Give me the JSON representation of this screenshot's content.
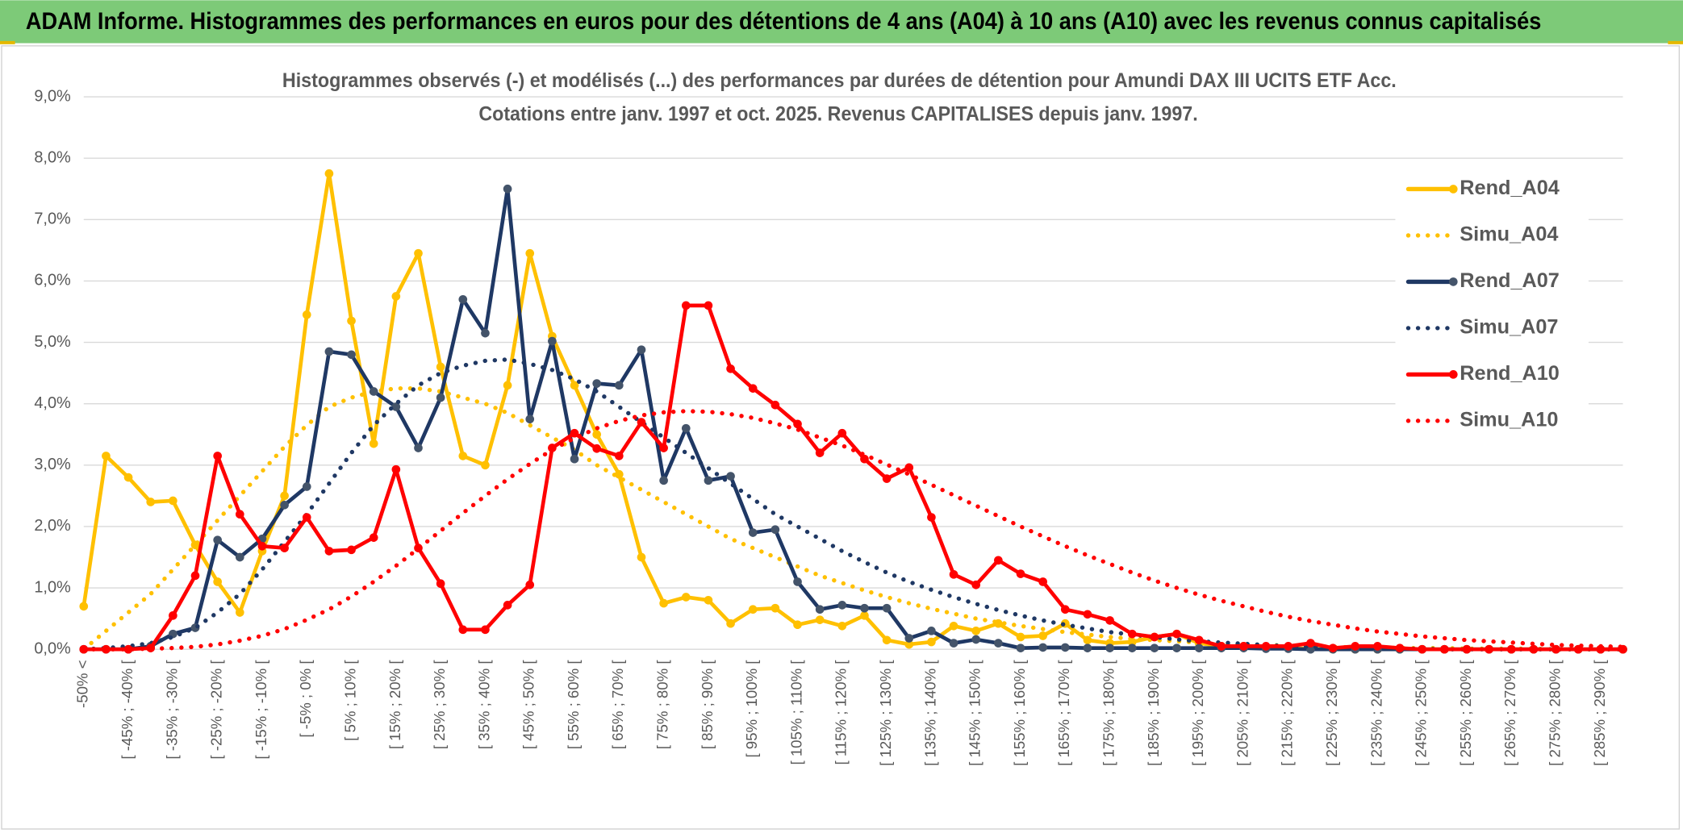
{
  "header": {
    "title": "ADAM Informe. Histogrammes des performances en euros pour des détentions de 4 ans (A04) à 10 ans (A10) avec les revenus connus capitalisés"
  },
  "chart_data": {
    "type": "line",
    "title": "Histogrammes observés (-) et modélisés (...) des performances par durées de détention pour Amundi DAX III UCITS ETF Acc.",
    "subtitle": "Cotations entre janv. 1997 et oct. 2025. Revenus CAPITALISES depuis janv. 1997.",
    "categories": [
      "-50% <",
      null,
      "[ -45% ; -40% [",
      null,
      "[ -35% ; -30% [",
      null,
      "[ -25% ; -20% [",
      null,
      "[ -15% ; -10% [",
      null,
      "[ -5% ; 0% [",
      null,
      "[ 5% ; 10% [",
      null,
      "[ 15% ; 20% [",
      null,
      "[ 25% ; 30% [",
      null,
      "[ 35% ; 40% [",
      null,
      "[ 45% ; 50% [",
      null,
      "[ 55% ; 60% [",
      null,
      "[ 65% ; 70% [",
      null,
      "[ 75% ; 80% [",
      null,
      "[ 85% ; 90% [",
      null,
      "[ 95% ; 100% [",
      null,
      "[ 105% ; 110% [",
      null,
      "[ 115% ; 120% [",
      null,
      "[ 125% ; 130% [",
      null,
      "[ 135% ; 140% [",
      null,
      "[ 145% ; 150% [",
      null,
      "[ 155% ; 160% [",
      null,
      "[ 165% ; 170% [",
      null,
      "[ 175% ; 180% [",
      null,
      "[ 185% ; 190% [",
      null,
      "[ 195% ; 200% [",
      null,
      "[ 205% ; 210% [",
      null,
      "[ 215% ; 220% [",
      null,
      "[ 225% ; 230% [",
      null,
      "[ 235% ; 240% [",
      null,
      "[ 245% ; 250% [",
      null,
      "[ 255% ; 260% [",
      null,
      "[ 265% ; 270% [",
      null,
      "[ 275% ; 280% [",
      null,
      "[ 285% ; 290% [",
      null
    ],
    "ylim": [
      0,
      9
    ],
    "yticks": [
      {
        "value": 0,
        "label": "0,0%"
      },
      {
        "value": 1,
        "label": "1,0%"
      },
      {
        "value": 2,
        "label": "2,0%"
      },
      {
        "value": 3,
        "label": "3,0%"
      },
      {
        "value": 4,
        "label": "4,0%"
      },
      {
        "value": 5,
        "label": "5,0%"
      },
      {
        "value": 6,
        "label": "6,0%"
      },
      {
        "value": 7,
        "label": "7,0%"
      },
      {
        "value": 8,
        "label": "8,0%"
      },
      {
        "value": 9,
        "label": "9,0%"
      }
    ],
    "grid": true,
    "legend": "right",
    "series": [
      {
        "name": "Rend_A04",
        "color": "#FFC000",
        "line_style": "solid",
        "marker": true,
        "values": [
          0.7,
          3.15,
          2.8,
          2.4,
          2.42,
          1.7,
          1.1,
          0.6,
          1.6,
          2.5,
          5.45,
          7.75,
          5.35,
          3.35,
          5.75,
          6.45,
          4.6,
          3.15,
          3.0,
          4.3,
          6.45,
          5.1,
          4.3,
          3.5,
          2.85,
          1.5,
          0.75,
          0.85,
          0.8,
          0.42,
          0.65,
          0.67,
          0.4,
          0.48,
          0.38,
          0.55,
          0.15,
          0.08,
          0.12,
          0.38,
          0.3,
          0.42,
          0.2,
          0.22,
          0.42,
          0.15,
          0.1,
          0.12,
          0.2,
          0.25,
          0.1,
          0.05,
          0.05,
          0.02,
          0.02,
          0.01,
          0,
          0,
          0,
          0,
          0,
          0,
          0,
          0,
          0,
          0,
          0,
          0,
          0,
          0
        ]
      },
      {
        "name": "Simu_A04",
        "color": "#FFC000",
        "line_style": "dotted",
        "marker": false,
        "values": [
          0,
          0.3,
          0.6,
          0.9,
          1.3,
          1.7,
          2.1,
          2.5,
          2.9,
          3.3,
          3.65,
          3.95,
          4.1,
          4.2,
          4.25,
          4.25,
          4.2,
          4.1,
          4.0,
          3.85,
          3.65,
          3.45,
          3.25,
          3.0,
          2.8,
          2.6,
          2.4,
          2.2,
          2.0,
          1.8,
          1.65,
          1.5,
          1.35,
          1.2,
          1.08,
          0.96,
          0.85,
          0.75,
          0.66,
          0.58,
          0.5,
          0.44,
          0.38,
          0.33,
          0.28,
          0.24,
          0.2,
          0.17,
          0.15,
          0.13,
          0.11,
          0.09,
          0.08,
          0.07,
          0.06,
          0.05,
          0.04,
          0.03,
          0.03,
          0.02,
          0.02,
          0.02,
          0.01,
          0.01,
          0.01,
          0.01,
          0,
          0,
          0,
          0
        ]
      },
      {
        "name": "Rend_A07",
        "color": "#1F3864",
        "line_style": "solid",
        "marker": true,
        "values": [
          0,
          0,
          0,
          0.05,
          0.25,
          0.35,
          1.78,
          1.5,
          1.8,
          2.35,
          2.65,
          4.85,
          4.8,
          4.2,
          3.95,
          3.28,
          4.1,
          5.7,
          5.15,
          7.5,
          3.75,
          5.02,
          3.1,
          4.33,
          4.3,
          4.88,
          2.75,
          3.6,
          2.75,
          2.82,
          1.9,
          1.95,
          1.1,
          0.65,
          0.72,
          0.67,
          0.67,
          0.18,
          0.3,
          0.1,
          0.16,
          0.1,
          0.02,
          0.03,
          0.03,
          0.02,
          0.02,
          0.02,
          0.02,
          0.02,
          0.02,
          0.02,
          0.02,
          0.01,
          0.01,
          0,
          0,
          0,
          0,
          0,
          0,
          0,
          0,
          0,
          0,
          0,
          0,
          0,
          0,
          0
        ]
      },
      {
        "name": "Simu_A07",
        "color": "#1F3864",
        "line_style": "dotted",
        "marker": false,
        "values": [
          0,
          0.02,
          0.05,
          0.1,
          0.2,
          0.35,
          0.6,
          0.9,
          1.3,
          1.75,
          2.2,
          2.7,
          3.2,
          3.65,
          4.0,
          4.3,
          4.5,
          4.62,
          4.7,
          4.72,
          4.65,
          4.55,
          4.4,
          4.2,
          3.95,
          3.7,
          3.45,
          3.2,
          2.95,
          2.7,
          2.45,
          2.2,
          2.0,
          1.8,
          1.6,
          1.42,
          1.25,
          1.1,
          0.97,
          0.85,
          0.74,
          0.64,
          0.55,
          0.47,
          0.4,
          0.34,
          0.28,
          0.24,
          0.2,
          0.16,
          0.13,
          0.11,
          0.09,
          0.07,
          0.05,
          0.04,
          0.03,
          0.02,
          0.02,
          0.01,
          0.01,
          0,
          0,
          0,
          0,
          0,
          0,
          0,
          0,
          0
        ]
      },
      {
        "name": "Rend_A10",
        "color": "#FF0000",
        "line_style": "solid",
        "marker": true,
        "values": [
          0,
          0,
          0,
          0.02,
          0.55,
          1.2,
          3.15,
          2.2,
          1.68,
          1.65,
          2.15,
          1.6,
          1.62,
          1.82,
          2.93,
          1.65,
          1.07,
          0.32,
          0.32,
          0.72,
          1.05,
          3.28,
          3.52,
          3.27,
          3.15,
          3.7,
          3.28,
          5.6,
          5.6,
          4.57,
          4.25,
          3.98,
          3.67,
          3.2,
          3.52,
          3.1,
          2.78,
          2.96,
          2.15,
          1.22,
          1.05,
          1.45,
          1.23,
          1.1,
          0.65,
          0.57,
          0.47,
          0.25,
          0.2,
          0.25,
          0.15,
          0.05,
          0.05,
          0.05,
          0.05,
          0.1,
          0.02,
          0.05,
          0.05,
          0.02,
          0,
          0,
          0,
          0,
          0,
          0,
          0,
          0,
          0,
          0
        ]
      },
      {
        "name": "Simu_A10",
        "color": "#FF0000",
        "line_style": "dotted",
        "marker": false,
        "values": [
          0,
          0,
          0,
          0.01,
          0.02,
          0.04,
          0.08,
          0.14,
          0.22,
          0.33,
          0.48,
          0.65,
          0.86,
          1.1,
          1.36,
          1.64,
          1.93,
          2.22,
          2.5,
          2.77,
          3.02,
          3.25,
          3.44,
          3.6,
          3.72,
          3.81,
          3.86,
          3.88,
          3.87,
          3.83,
          3.77,
          3.68,
          3.58,
          3.45,
          3.32,
          3.17,
          3.01,
          2.85,
          2.68,
          2.51,
          2.34,
          2.17,
          2.0,
          1.84,
          1.68,
          1.53,
          1.39,
          1.25,
          1.12,
          1.0,
          0.89,
          0.79,
          0.7,
          0.61,
          0.53,
          0.46,
          0.4,
          0.34,
          0.29,
          0.25,
          0.21,
          0.18,
          0.15,
          0.13,
          0.11,
          0.09,
          0.07,
          0.06,
          0.05,
          0.04
        ]
      }
    ]
  }
}
